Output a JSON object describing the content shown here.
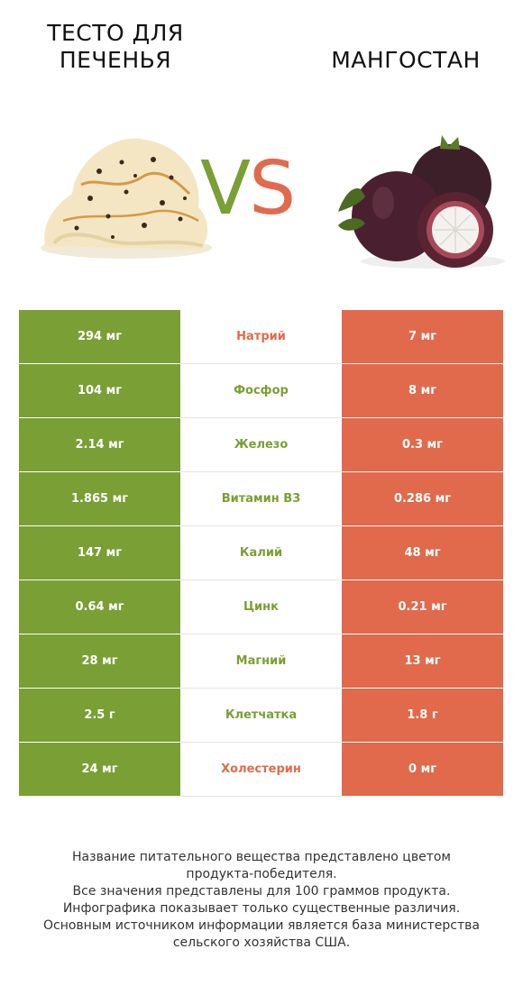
{
  "left_product": {
    "name_line1": "ТЕСТО ДЛЯ",
    "name_line2": "ПЕЧЕНЬЯ"
  },
  "right_product": {
    "name": "МАНГОСТАН"
  },
  "vs": {
    "v": "V",
    "s": "S"
  },
  "colors": {
    "left": "#7a9f34",
    "right": "#e06a4b"
  },
  "rows": [
    {
      "nutrient": "Натрий",
      "left": "294 мг",
      "right": "7 мг",
      "winner": "right"
    },
    {
      "nutrient": "Фосфор",
      "left": "104 мг",
      "right": "8 мг",
      "winner": "left"
    },
    {
      "nutrient": "Железо",
      "left": "2.14 мг",
      "right": "0.3 мг",
      "winner": "left"
    },
    {
      "nutrient": "Витамин B3",
      "left": "1.865 мг",
      "right": "0.286 мг",
      "winner": "left"
    },
    {
      "nutrient": "Калий",
      "left": "147 мг",
      "right": "48 мг",
      "winner": "left"
    },
    {
      "nutrient": "Цинк",
      "left": "0.64 мг",
      "right": "0.21 мг",
      "winner": "left"
    },
    {
      "nutrient": "Магний",
      "left": "28 мг",
      "right": "13 мг",
      "winner": "left"
    },
    {
      "nutrient": "Клетчатка",
      "left": "2.5 г",
      "right": "1.8 г",
      "winner": "left"
    },
    {
      "nutrient": "Холестерин",
      "left": "24 мг",
      "right": "0 мг",
      "winner": "right"
    }
  ],
  "footer": {
    "line1": "Название питательного вещества представлено цветом",
    "line2": "продукта-победителя.",
    "line3": "Все значения представлены для 100 граммов продукта.",
    "line4": "Инфографика показывает только существенные различия.",
    "line5": "Основным источником информации является база министерства",
    "line6": "сельского хозяйства США."
  }
}
